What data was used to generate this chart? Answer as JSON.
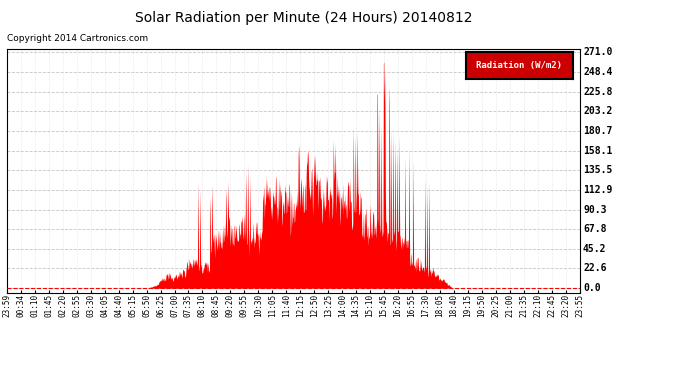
{
  "title": "Solar Radiation per Minute (24 Hours) 20140812",
  "copyright": "Copyright 2014 Cartronics.com",
  "legend_label": "Radiation (W/m2)",
  "fill_color": "#FF0000",
  "background_color": "#FFFFFF",
  "plot_bg_color": "#FFFFFF",
  "grid_color": "#C0C0C0",
  "ytick_values": [
    0.0,
    22.6,
    45.2,
    67.8,
    90.3,
    112.9,
    135.5,
    158.1,
    180.7,
    203.2,
    225.8,
    248.4,
    271.0
  ],
  "ylim_min": -5,
  "ylim_max": 275,
  "x_tick_labels": [
    "23:59",
    "00:34",
    "01:10",
    "01:45",
    "02:20",
    "02:55",
    "03:30",
    "04:05",
    "04:40",
    "05:15",
    "05:50",
    "06:25",
    "07:00",
    "07:35",
    "08:10",
    "08:45",
    "09:20",
    "09:55",
    "10:30",
    "11:05",
    "11:40",
    "12:15",
    "12:50",
    "13:25",
    "14:00",
    "14:35",
    "15:10",
    "15:45",
    "16:20",
    "16:55",
    "17:30",
    "18:05",
    "18:40",
    "19:15",
    "19:50",
    "20:25",
    "21:00",
    "21:35",
    "22:10",
    "22:45",
    "23:20",
    "23:55"
  ],
  "dashed_line_color": "#FF0000",
  "sunrise_minute": 351,
  "sunset_minute": 1121,
  "peak_minute": 956
}
